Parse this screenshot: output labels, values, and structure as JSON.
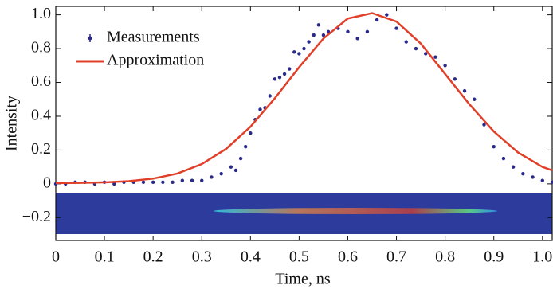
{
  "chart_data": {
    "type": "line",
    "x_label": "Time, ns",
    "y_label": "Intensity",
    "xlim": [
      0,
      1.02
    ],
    "ylim": [
      -0.335,
      1.05
    ],
    "xticks": [
      0,
      0.1,
      0.2,
      0.3,
      0.4,
      0.5,
      0.6,
      0.7,
      0.8,
      0.9,
      {
        "value": 1.0,
        "label": "1.0"
      }
    ],
    "yticks": [
      {
        "value": -0.2,
        "label": "−0.2"
      },
      0,
      0.2,
      0.4,
      0.6,
      0.8,
      {
        "value": 1.0,
        "label": "1.0"
      }
    ],
    "legend": "upper left",
    "series": [
      {
        "name": "Measurements",
        "color": "#2a2a8c",
        "style": "markers",
        "x": [
          0,
          0.02,
          0.04,
          0.06,
          0.08,
          0.1,
          0.12,
          0.14,
          0.16,
          0.18,
          0.2,
          0.22,
          0.24,
          0.26,
          0.28,
          0.3,
          0.32,
          0.34,
          0.36,
          0.37,
          0.38,
          0.39,
          0.4,
          0.41,
          0.42,
          0.43,
          0.44,
          0.45,
          0.46,
          0.47,
          0.48,
          0.49,
          0.5,
          0.51,
          0.52,
          0.53,
          0.54,
          0.55,
          0.56,
          0.58,
          0.6,
          0.62,
          0.64,
          0.66,
          0.68,
          0.7,
          0.72,
          0.74,
          0.76,
          0.78,
          0.8,
          0.82,
          0.84,
          0.86,
          0.88,
          0.9,
          0.92,
          0.94,
          0.96,
          0.98,
          1.0,
          1.02
        ],
        "values": [
          0,
          0,
          0.01,
          0.01,
          0,
          0.01,
          0,
          0.01,
          0.01,
          0.01,
          0.01,
          0.01,
          0.01,
          0.02,
          0.02,
          0.02,
          0.04,
          0.06,
          0.1,
          0.08,
          0.15,
          0.22,
          0.3,
          0.38,
          0.44,
          0.45,
          0.52,
          0.62,
          0.63,
          0.65,
          0.68,
          0.78,
          0.77,
          0.8,
          0.84,
          0.88,
          0.94,
          0.88,
          0.9,
          0.92,
          0.9,
          0.86,
          0.9,
          0.97,
          1.0,
          0.92,
          0.84,
          0.8,
          0.77,
          0.75,
          0.7,
          0.62,
          0.55,
          0.5,
          0.35,
          0.22,
          0.15,
          0.1,
          0.06,
          0.04,
          0.02,
          0.01
        ]
      },
      {
        "name": "Approximation",
        "color": "#e0402a",
        "style": "line",
        "x": [
          0,
          0.05,
          0.1,
          0.15,
          0.2,
          0.25,
          0.3,
          0.35,
          0.4,
          0.45,
          0.5,
          0.55,
          0.6,
          0.65,
          0.7,
          0.75,
          0.8,
          0.85,
          0.9,
          0.95,
          1.0,
          1.02
        ],
        "values": [
          0.005,
          0.006,
          0.009,
          0.016,
          0.031,
          0.061,
          0.117,
          0.207,
          0.338,
          0.506,
          0.69,
          0.86,
          0.978,
          1.01,
          0.96,
          0.83,
          0.65,
          0.47,
          0.31,
          0.185,
          0.1,
          0.08
        ]
      }
    ]
  }
}
